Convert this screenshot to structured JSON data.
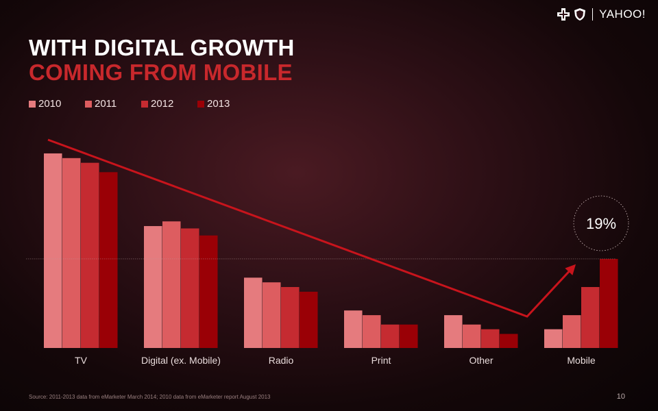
{
  "header": {
    "brand": "YAHOO!",
    "title": "WITH DIGITAL GROWTH",
    "subtitle": "COMING FROM MOBILE",
    "callout": "19%"
  },
  "footer": {
    "source": "Source: 2011-2013  data from eMarketer  March 2014;  2010  data from eMarketer  report  August 2013",
    "page_number": "10"
  },
  "colors": {
    "2010": "#e57b7e",
    "2011": "#dd5d60",
    "2012": "#c52b31",
    "2013": "#9a0006",
    "trend": "#c8141c",
    "accent_title": "#c8282c"
  },
  "chart_data": {
    "type": "bar",
    "title": "WITH DIGITAL GROWTH COMING FROM MOBILE",
    "categories": [
      "TV",
      "Digital (ex. Mobile)",
      "Radio",
      "Print",
      "Other",
      "Mobile"
    ],
    "series": [
      {
        "name": "2010",
        "values": [
          41.5,
          26.0,
          15.0,
          8.0,
          7.0,
          4.0
        ]
      },
      {
        "name": "2011",
        "values": [
          40.5,
          27.0,
          14.0,
          7.0,
          5.0,
          7.0
        ]
      },
      {
        "name": "2012",
        "values": [
          39.5,
          25.5,
          13.0,
          5.0,
          4.0,
          13.0
        ]
      },
      {
        "name": "2013",
        "values": [
          37.5,
          24.0,
          12.0,
          5.0,
          3.0,
          19.0
        ]
      }
    ],
    "ylim": [
      0,
      45
    ],
    "reference_line": 19,
    "annotation": "19%",
    "xlabel": "",
    "ylabel": "",
    "legend": "top-left"
  }
}
